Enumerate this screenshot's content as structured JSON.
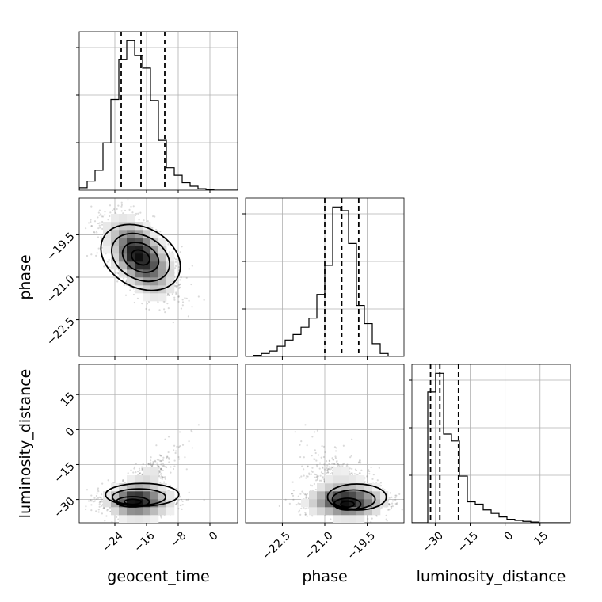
{
  "chart_data": {
    "type": "corner",
    "parameters": [
      {
        "name": "geocent_time",
        "range": [
          -33,
          7
        ],
        "ticks": [
          -24,
          -16,
          -8,
          0
        ],
        "tick_labels": [
          "−24",
          "−16",
          "−8",
          "0"
        ],
        "quantiles": [
          -22.4,
          -17.4,
          -11.4
        ]
      },
      {
        "name": "phase",
        "range": [
          -23.8,
          -18.2
        ],
        "ticks": [
          -22.5,
          -21.0,
          -19.5
        ],
        "tick_labels": [
          "−22.5",
          "−21.0",
          "−19.5"
        ],
        "quantiles": [
          -21.0,
          -20.4,
          -19.8
        ]
      },
      {
        "name": "luminosity_distance",
        "range": [
          -40,
          28
        ],
        "ticks": [
          -30,
          -15,
          0,
          15
        ],
        "tick_labels": [
          "−30",
          "−15",
          "0",
          "15"
        ],
        "quantiles": [
          -32,
          -28,
          -20
        ]
      }
    ],
    "axis_labels": {
      "x": [
        "geocent_time",
        "phase",
        "luminosity_distance"
      ],
      "y": [
        "phase",
        "luminosity_distance"
      ]
    },
    "histograms": [
      {
        "parameter": "geocent_time",
        "bin_edges": [
          -33,
          -31,
          -29,
          -27,
          -25,
          -23,
          -21,
          -19,
          -17,
          -15,
          -13,
          -11,
          -9,
          -7,
          -5,
          -3,
          -1,
          1,
          3,
          5,
          7
        ],
        "counts": [
          0.5,
          1.8,
          4.0,
          9.5,
          18.2,
          26.2,
          30.0,
          27.0,
          24.5,
          18.0,
          10.0,
          4.5,
          3.0,
          1.5,
          0.8,
          0.3,
          0.1,
          0,
          0,
          0
        ]
      },
      {
        "parameter": "phase",
        "bin_edges": [
          -23.8,
          -23.52,
          -23.24,
          -22.96,
          -22.68,
          -22.4,
          -22.12,
          -21.84,
          -21.56,
          -21.28,
          -21.0,
          -20.72,
          -20.44,
          -20.16,
          -19.88,
          -19.6,
          -19.32,
          -19.04,
          -18.76,
          -18.48,
          -18.2
        ],
        "counts": [
          0,
          0.3,
          0.8,
          1.5,
          2.8,
          4.5,
          6.0,
          8.0,
          10.5,
          17.0,
          25.0,
          41.0,
          40.0,
          31.0,
          14.0,
          9.0,
          3.5,
          0.8,
          0,
          0
        ]
      },
      {
        "parameter": "luminosity_distance",
        "bin_edges": [
          -40,
          -36.6,
          -33.2,
          -29.8,
          -26.4,
          -23.0,
          -19.6,
          -16.2,
          -12.8,
          -9.4,
          -6.0,
          -2.6,
          0.8,
          4.2,
          7.6,
          11.0,
          14.4,
          17.8,
          21.2,
          24.6,
          28.0
        ],
        "counts": [
          0,
          0,
          56,
          64,
          38,
          35,
          20,
          9,
          8,
          5.5,
          4.0,
          2.5,
          1.5,
          1.0,
          0.6,
          0.3,
          0,
          0,
          0,
          0
        ]
      }
    ],
    "pair_densities": [
      {
        "x": "geocent_time",
        "y": "phase",
        "peak": [
          -17.5,
          -20.3
        ],
        "sd": [
          4.2,
          0.6
        ],
        "correlation": -0.55
      },
      {
        "x": "geocent_time",
        "y": "luminosity_distance",
        "peak": [
          -19.5,
          -31.0
        ],
        "sd": [
          4.0,
          2.6
        ],
        "tail": "rises to [5, 20] as geocent_time increases"
      },
      {
        "x": "phase",
        "y": "luminosity_distance",
        "peak": [
          -20.2,
          -32.0
        ],
        "sd": [
          0.45,
          3.0
        ],
        "tail": "extends to luminosity_distance ≈ 10 near phase ≈ -21"
      }
    ],
    "grid": true
  }
}
